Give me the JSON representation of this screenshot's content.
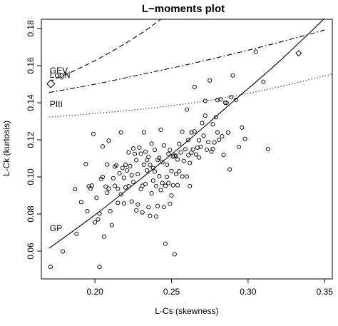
{
  "chart_data": {
    "type": "scatter",
    "title": "L−moments plot",
    "xlabel": "L-Cs (skewness)",
    "ylabel": "L-Ck (kurtosis)",
    "xlim": [
      0.165,
      0.355
    ],
    "ylim": [
      0.045,
      0.185
    ],
    "xticks": [
      0.2,
      0.25,
      0.3,
      0.35
    ],
    "xtick_labels": [
      "0.20",
      "0.25",
      "0.30",
      "0.35"
    ],
    "yticks": [
      0.06,
      0.08,
      0.1,
      0.12,
      0.14,
      0.16,
      0.18
    ],
    "ytick_labels": [
      "0.06",
      "0.08",
      "0.10",
      "0.12",
      "0.14",
      "0.16",
      "0.18"
    ],
    "grid": false,
    "legend": "none",
    "annotations": [
      {
        "text": "GEV",
        "x": 0.1705,
        "y": 0.1558
      },
      {
        "text": "LogN",
        "x": 0.1705,
        "y": 0.1534
      },
      {
        "text": "PIII",
        "x": 0.1705,
        "y": 0.1376
      },
      {
        "text": "GP",
        "x": 0.1705,
        "y": 0.0708
      }
    ],
    "average_point": {
      "x": 0.1712,
      "y": 0.1502
    },
    "reference_point": {
      "x": 0.333,
      "y": 0.1667
    },
    "curves": [
      {
        "label": "GEV",
        "style": "dashed",
        "x": [
          0.17,
          0.19,
          0.21,
          0.23,
          0.245
        ],
        "y": [
          0.1513,
          0.1586,
          0.1672,
          0.1773,
          0.1862
        ]
      },
      {
        "label": "LogN",
        "style": "dashdot",
        "x": [
          0.17,
          0.2,
          0.23,
          0.26,
          0.29,
          0.32,
          0.35
        ],
        "y": [
          0.1455,
          0.15,
          0.1552,
          0.1605,
          0.1663,
          0.1725,
          0.1792
        ]
      },
      {
        "label": "PIII",
        "style": "dotted",
        "x": [
          0.17,
          0.2,
          0.23,
          0.26,
          0.29,
          0.32,
          0.355
        ],
        "y": [
          0.1322,
          0.1342,
          0.1365,
          0.1395,
          0.1435,
          0.1485,
          0.1555
        ]
      },
      {
        "label": "GP",
        "style": "solid",
        "x": [
          0.17,
          0.2,
          0.23,
          0.26,
          0.29,
          0.32,
          0.35
        ],
        "y": [
          0.0615,
          0.0795,
          0.099,
          0.119,
          0.1405,
          0.162,
          0.1855
        ]
      }
    ],
    "points": [
      [
        0.171,
        0.0515
      ],
      [
        0.179,
        0.0598
      ],
      [
        0.187,
        0.0934
      ],
      [
        0.188,
        0.0693
      ],
      [
        0.191,
        0.0864
      ],
      [
        0.194,
        0.1069
      ],
      [
        0.195,
        0.0815
      ],
      [
        0.196,
        0.0949
      ],
      [
        0.197,
        0.0938
      ],
      [
        0.198,
        0.0953
      ],
      [
        0.199,
        0.1231
      ],
      [
        0.2,
        0.0755
      ],
      [
        0.201,
        0.0887
      ],
      [
        0.202,
        0.0771
      ],
      [
        0.203,
        0.0802
      ],
      [
        0.203,
        0.0515
      ],
      [
        0.204,
        0.0989
      ],
      [
        0.205,
        0.1
      ],
      [
        0.205,
        0.1164
      ],
      [
        0.206,
        0.0678
      ],
      [
        0.207,
        0.0948
      ],
      [
        0.208,
        0.0915
      ],
      [
        0.208,
        0.1067
      ],
      [
        0.209,
        0.0937
      ],
      [
        0.209,
        0.1195
      ],
      [
        0.21,
        0.0815
      ],
      [
        0.211,
        0.074
      ],
      [
        0.212,
        0.0993
      ],
      [
        0.213,
        0.0952
      ],
      [
        0.213,
        0.1056
      ],
      [
        0.214,
        0.1062
      ],
      [
        0.215,
        0.086
      ],
      [
        0.215,
        0.0936
      ],
      [
        0.216,
        0.102
      ],
      [
        0.217,
        0.0906
      ],
      [
        0.217,
        0.124
      ],
      [
        0.218,
        0.1048
      ],
      [
        0.219,
        0.0857
      ],
      [
        0.219,
        0.0995
      ],
      [
        0.22,
        0.0943
      ],
      [
        0.22,
        0.1065
      ],
      [
        0.221,
        0.1035
      ],
      [
        0.222,
        0.095
      ],
      [
        0.222,
        0.1132
      ],
      [
        0.223,
        0.1058
      ],
      [
        0.224,
        0.0867
      ],
      [
        0.224,
        0.1009
      ],
      [
        0.225,
        0.0973
      ],
      [
        0.225,
        0.1153
      ],
      [
        0.226,
        0.1124
      ],
      [
        0.227,
        0.082
      ],
      [
        0.227,
        0.109
      ],
      [
        0.228,
        0.0851
      ],
      [
        0.228,
        0.1015
      ],
      [
        0.229,
        0.1158
      ],
      [
        0.23,
        0.0936
      ],
      [
        0.23,
        0.1125
      ],
      [
        0.231,
        0.0809
      ],
      [
        0.231,
        0.0952
      ],
      [
        0.232,
        0.1066
      ],
      [
        0.232,
        0.124
      ],
      [
        0.233,
        0.0962
      ],
      [
        0.233,
        0.1136
      ],
      [
        0.234,
        0.1035
      ],
      [
        0.234,
        0.1091
      ],
      [
        0.235,
        0.0837
      ],
      [
        0.235,
        0.1108
      ],
      [
        0.236,
        0.079
      ],
      [
        0.236,
        0.1064
      ],
      [
        0.237,
        0.0912
      ],
      [
        0.237,
        0.1179
      ],
      [
        0.238,
        0.1048
      ],
      [
        0.238,
        0.098
      ],
      [
        0.239,
        0.1029
      ],
      [
        0.239,
        0.1146
      ],
      [
        0.24,
        0.0787
      ],
      [
        0.24,
        0.095
      ],
      [
        0.241,
        0.0843
      ],
      [
        0.241,
        0.1092
      ],
      [
        0.242,
        0.1102
      ],
      [
        0.242,
        0.1003
      ],
      [
        0.243,
        0.0929
      ],
      [
        0.243,
        0.1254
      ],
      [
        0.244,
        0.0967
      ],
      [
        0.244,
        0.1079
      ],
      [
        0.245,
        0.0838
      ],
      [
        0.245,
        0.117
      ],
      [
        0.246,
        0.0952
      ],
      [
        0.246,
        0.064
      ],
      [
        0.247,
        0.1066
      ],
      [
        0.247,
        0.1
      ],
      [
        0.248,
        0.0967
      ],
      [
        0.248,
        0.1124
      ],
      [
        0.249,
        0.0855
      ],
      [
        0.249,
        0.1145
      ],
      [
        0.25,
        0.1031
      ],
      [
        0.25,
        0.09
      ],
      [
        0.251,
        0.1109
      ],
      [
        0.251,
        0.0955
      ],
      [
        0.252,
        0.1114
      ],
      [
        0.252,
        0.0583
      ],
      [
        0.253,
        0.1114
      ],
      [
        0.253,
        0.1015
      ],
      [
        0.254,
        0.0955
      ],
      [
        0.254,
        0.1094
      ],
      [
        0.255,
        0.103
      ],
      [
        0.255,
        0.1178
      ],
      [
        0.256,
        0.1132
      ],
      [
        0.257,
        0.1244
      ],
      [
        0.257,
        0.1002
      ],
      [
        0.258,
        0.1086
      ],
      [
        0.259,
        0.1149
      ],
      [
        0.26,
        0.1002
      ],
      [
        0.26,
        0.1363
      ],
      [
        0.261,
        0.1117
      ],
      [
        0.262,
        0.1075
      ],
      [
        0.262,
        0.095
      ],
      [
        0.263,
        0.1131
      ],
      [
        0.264,
        0.1148
      ],
      [
        0.265,
        0.1245
      ],
      [
        0.266,
        0.1121
      ],
      [
        0.267,
        0.1158
      ],
      [
        0.268,
        0.1197
      ],
      [
        0.269,
        0.1162
      ],
      [
        0.27,
        0.129
      ],
      [
        0.271,
        0.1222
      ],
      [
        0.272,
        0.141
      ],
      [
        0.273,
        0.1147
      ],
      [
        0.274,
        0.1188
      ],
      [
        0.275,
        0.152
      ],
      [
        0.276,
        0.1136
      ],
      [
        0.277,
        0.1284
      ],
      [
        0.278,
        0.1186
      ],
      [
        0.279,
        0.1322
      ],
      [
        0.28,
        0.1414
      ],
      [
        0.28,
        0.124
      ],
      [
        0.281,
        0.12
      ],
      [
        0.282,
        0.1418
      ],
      [
        0.283,
        0.1219
      ],
      [
        0.284,
        0.1119
      ],
      [
        0.285,
        0.14
      ],
      [
        0.286,
        0.14
      ],
      [
        0.287,
        0.1239
      ],
      [
        0.288,
        0.104
      ],
      [
        0.289,
        0.143
      ],
      [
        0.29,
        0.1547
      ],
      [
        0.292,
        0.1415
      ],
      [
        0.294,
        0.1162
      ],
      [
        0.296,
        0.1266
      ],
      [
        0.298,
        0.1205
      ],
      [
        0.305,
        0.1675
      ],
      [
        0.31,
        0.1513
      ],
      [
        0.313,
        0.115
      ],
      [
        0.277,
        0.115
      ],
      [
        0.265,
        0.1485
      ],
      [
        0.272,
        0.133
      ],
      [
        0.268,
        0.1105
      ],
      [
        0.263,
        0.124
      ],
      [
        0.261,
        0.12
      ]
    ]
  }
}
